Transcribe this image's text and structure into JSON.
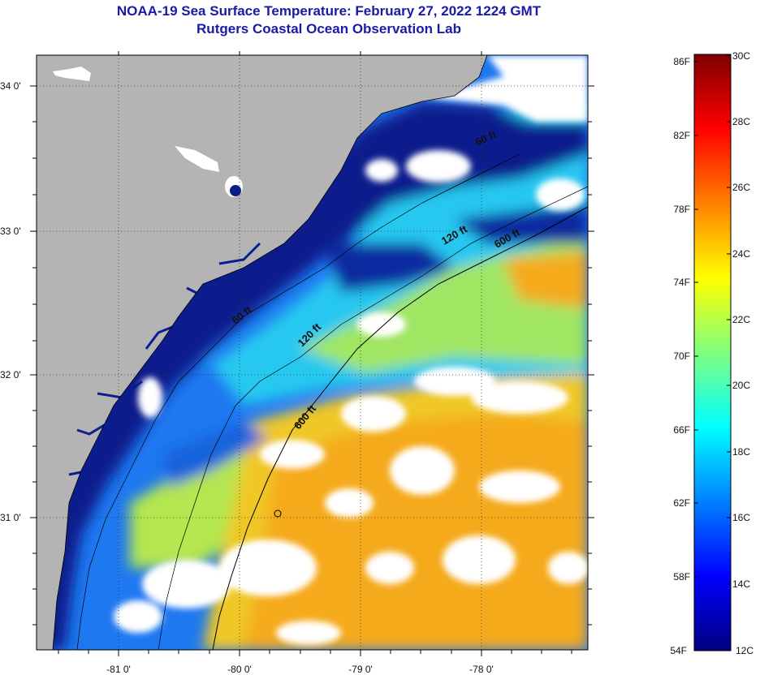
{
  "title": {
    "line1": "NOAA-19 Sea Surface Temperature:  February 27, 2022 1224 GMT",
    "line2": "Rutgers Coastal Ocean Observation Lab"
  },
  "map": {
    "lat_labels": [
      "34 0'",
      "33 0'",
      "32 0'",
      "31 0'"
    ],
    "lon_labels": [
      "-81 0'",
      "-80 0'",
      "-79 0'",
      "-78 0'"
    ],
    "contours": [
      {
        "label": "60 ft"
      },
      {
        "label": "120 ft"
      },
      {
        "label": "600 ft"
      },
      {
        "label": "60 ft"
      },
      {
        "label": "120 ft"
      },
      {
        "label": "600 ft"
      }
    ],
    "colors": {
      "land": "#b4b4b4",
      "cloud": "#ffffff",
      "cold": "#0a1e8c",
      "cool": "#1e8cff",
      "mid": "#28dcf0",
      "warm": "#f0e632",
      "hot": "#f5aa1e"
    }
  },
  "colorbar": {
    "f_labels": [
      "86F",
      "82F",
      "78F",
      "74F",
      "70F",
      "66F",
      "62F",
      "58F",
      "54F"
    ],
    "c_labels": [
      "30C",
      "28C",
      "26C",
      "24C",
      "22C",
      "20C",
      "18C",
      "16C",
      "14C",
      "12C"
    ],
    "stops": [
      "#00007f",
      "#0000ff",
      "#0080ff",
      "#00ffff",
      "#80ff80",
      "#ffff00",
      "#ff8000",
      "#ff0000",
      "#7f0000"
    ]
  }
}
